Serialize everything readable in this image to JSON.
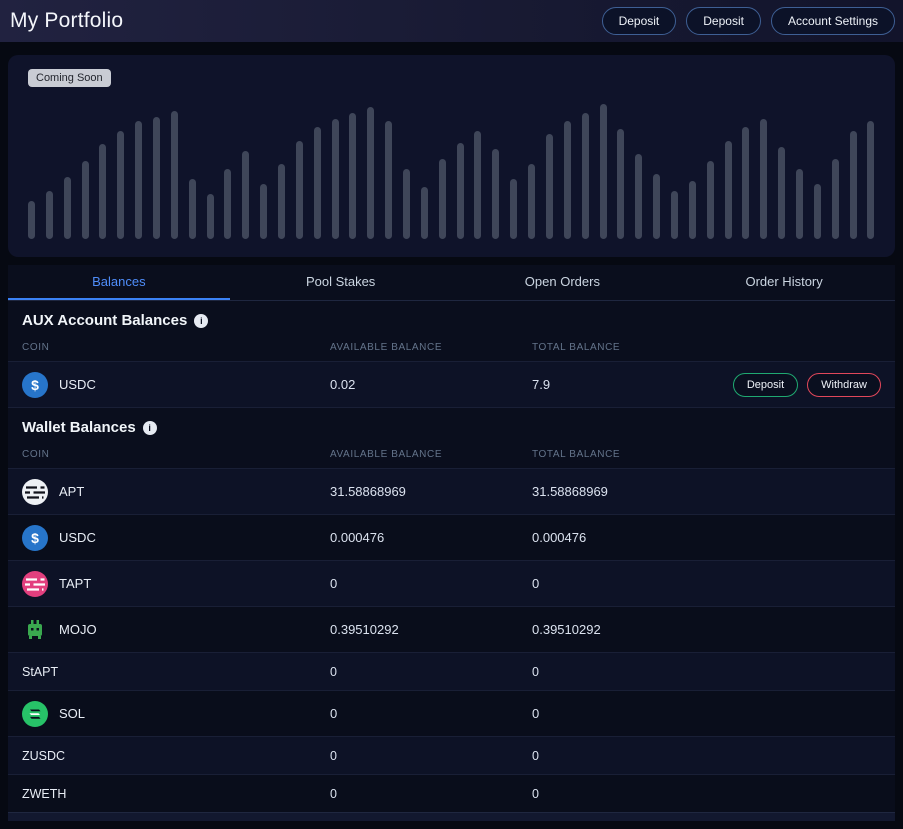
{
  "header": {
    "title": "My Portfolio",
    "buttons": [
      {
        "label": "Deposit"
      },
      {
        "label": "Deposit"
      },
      {
        "label": "Account Settings"
      }
    ]
  },
  "chart": {
    "badge": "Coming Soon",
    "type": "bar-placeholder",
    "bar_color": "#3f4659",
    "bars": [
      38,
      48,
      62,
      78,
      95,
      108,
      118,
      122,
      128,
      60,
      45,
      70,
      88,
      55,
      75,
      98,
      112,
      120,
      126,
      132,
      118,
      70,
      52,
      80,
      96,
      108,
      90,
      60,
      75,
      105,
      118,
      126,
      135,
      110,
      85,
      65,
      48,
      58,
      78,
      98,
      112,
      120,
      92,
      70,
      55,
      80,
      108,
      118
    ]
  },
  "tabs": [
    {
      "label": "Balances",
      "active": true
    },
    {
      "label": "Pool Stakes",
      "active": false
    },
    {
      "label": "Open Orders",
      "active": false
    },
    {
      "label": "Order History",
      "active": false
    }
  ],
  "aux": {
    "title": "AUX Account Balances",
    "columns": {
      "coin": "COIN",
      "available": "AVAILABLE BALANCE",
      "total": "TOTAL BALANCE"
    },
    "rows": [
      {
        "coin": "USDC",
        "icon": "usdc-icon",
        "available": "0.02",
        "total": "7.9",
        "actions": [
          "Deposit",
          "Withdraw"
        ]
      }
    ]
  },
  "wallet": {
    "title": "Wallet Balances",
    "columns": {
      "coin": "COIN",
      "available": "AVAILABLE BALANCE",
      "total": "TOTAL BALANCE"
    },
    "rows": [
      {
        "coin": "APT",
        "icon": "apt-icon",
        "available": "31.58868969",
        "total": "31.58868969"
      },
      {
        "coin": "USDC",
        "icon": "usdc-icon",
        "available": "0.000476",
        "total": "0.000476"
      },
      {
        "coin": "TAPT",
        "icon": "tapt-icon",
        "available": "0",
        "total": "0"
      },
      {
        "coin": "MOJO",
        "icon": "mojo-icon",
        "available": "0.39510292",
        "total": "0.39510292"
      },
      {
        "coin": "StAPT",
        "icon": "none",
        "available": "0",
        "total": "0"
      },
      {
        "coin": "SOL",
        "icon": "sol-icon",
        "available": "0",
        "total": "0"
      },
      {
        "coin": "ZUSDC",
        "icon": "none",
        "available": "0",
        "total": "0"
      },
      {
        "coin": "ZWETH",
        "icon": "none",
        "available": "0",
        "total": "0"
      }
    ]
  },
  "colors": {
    "accent_blue": "#3b82f6",
    "deposit_green": "#1fa971",
    "withdraw_red": "#e0475a",
    "usdc_blue": "#2775ca",
    "tapt_pink": "#e23f7e",
    "sol_green": "#27c268",
    "mojo_green": "#3aa84f"
  }
}
